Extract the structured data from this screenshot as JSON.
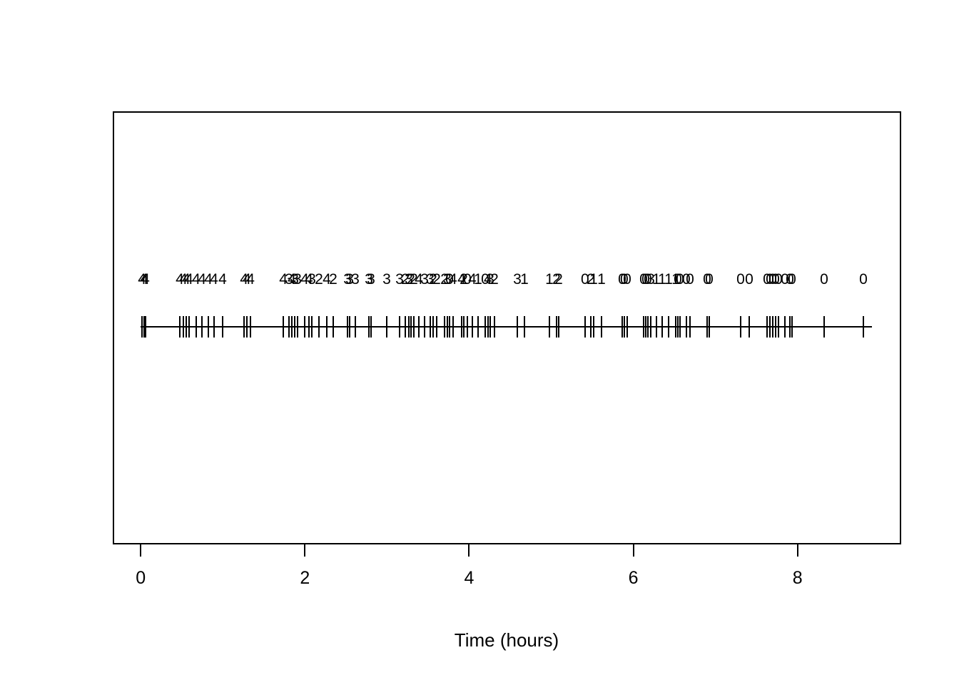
{
  "figure": {
    "background_color": "#ffffff",
    "frame_color": "#000000",
    "text_color": "#000000"
  },
  "chart_data": {
    "type": "scatter",
    "subtype": "event-rug-timeline",
    "title": "",
    "xlabel": "Time (hours)",
    "ylabel": "",
    "xlim": [
      -0.34,
      9.26
    ],
    "x_ticks": [
      0,
      2,
      4,
      6,
      8
    ],
    "x_tick_labels": [
      "0",
      "2",
      "4",
      "6",
      "8"
    ],
    "grid": false,
    "legend": false,
    "timeline": {
      "t_start": 0.0,
      "t_end": 8.91
    },
    "events": [
      {
        "t": 0.016,
        "label": "4"
      },
      {
        "t": 0.042,
        "label": "4"
      },
      {
        "t": 0.059,
        "label": "4"
      },
      {
        "t": 0.476,
        "label": "4"
      },
      {
        "t": 0.52,
        "label": "4"
      },
      {
        "t": 0.554,
        "label": "4"
      },
      {
        "t": 0.589,
        "label": "4"
      },
      {
        "t": 0.676,
        "label": "4"
      },
      {
        "t": 0.746,
        "label": "4"
      },
      {
        "t": 0.824,
        "label": "4"
      },
      {
        "t": 0.893,
        "label": "4"
      },
      {
        "t": 0.998,
        "label": "4"
      },
      {
        "t": 1.259,
        "label": "4"
      },
      {
        "t": 1.293,
        "label": "4"
      },
      {
        "t": 1.337,
        "label": "4"
      },
      {
        "t": 1.737,
        "label": "4"
      },
      {
        "t": 1.806,
        "label": "3"
      },
      {
        "t": 1.841,
        "label": "4"
      },
      {
        "t": 1.875,
        "label": "3"
      },
      {
        "t": 1.91,
        "label": "3"
      },
      {
        "t": 1.997,
        "label": "4"
      },
      {
        "t": 2.049,
        "label": "4"
      },
      {
        "t": 2.084,
        "label": "3"
      },
      {
        "t": 2.171,
        "label": "2"
      },
      {
        "t": 2.266,
        "label": "4"
      },
      {
        "t": 2.345,
        "label": "2"
      },
      {
        "t": 2.519,
        "label": "3"
      },
      {
        "t": 2.545,
        "label": "3"
      },
      {
        "t": 2.614,
        "label": "3"
      },
      {
        "t": 2.779,
        "label": "3"
      },
      {
        "t": 2.805,
        "label": "3"
      },
      {
        "t": 2.996,
        "label": "3"
      },
      {
        "t": 3.153,
        "label": "3"
      },
      {
        "t": 3.222,
        "label": "2"
      },
      {
        "t": 3.266,
        "label": "3"
      },
      {
        "t": 3.292,
        "label": "2"
      },
      {
        "t": 3.327,
        "label": "2"
      },
      {
        "t": 3.387,
        "label": "4"
      },
      {
        "t": 3.457,
        "label": "3"
      },
      {
        "t": 3.526,
        "label": "3"
      },
      {
        "t": 3.561,
        "label": "2"
      },
      {
        "t": 3.605,
        "label": "2"
      },
      {
        "t": 3.7,
        "label": "2"
      },
      {
        "t": 3.735,
        "label": "3"
      },
      {
        "t": 3.761,
        "label": "0"
      },
      {
        "t": 3.804,
        "label": "4"
      },
      {
        "t": 3.909,
        "label": "4"
      },
      {
        "t": 3.935,
        "label": "2"
      },
      {
        "t": 3.978,
        "label": "0"
      },
      {
        "t": 4.039,
        "label": "4"
      },
      {
        "t": 4.109,
        "label": "1"
      },
      {
        "t": 4.196,
        "label": "0"
      },
      {
        "t": 4.23,
        "label": "4"
      },
      {
        "t": 4.257,
        "label": "3"
      },
      {
        "t": 4.309,
        "label": "2"
      },
      {
        "t": 4.587,
        "label": "3"
      },
      {
        "t": 4.674,
        "label": "1"
      },
      {
        "t": 4.978,
        "label": "1"
      },
      {
        "t": 5.065,
        "label": "2"
      },
      {
        "t": 5.091,
        "label": "2"
      },
      {
        "t": 5.412,
        "label": "0"
      },
      {
        "t": 5.482,
        "label": "2"
      },
      {
        "t": 5.517,
        "label": "1"
      },
      {
        "t": 5.612,
        "label": "1"
      },
      {
        "t": 5.864,
        "label": "0"
      },
      {
        "t": 5.89,
        "label": "0"
      },
      {
        "t": 5.925,
        "label": "0"
      },
      {
        "t": 6.125,
        "label": "0"
      },
      {
        "t": 6.151,
        "label": "0"
      },
      {
        "t": 6.177,
        "label": "0"
      },
      {
        "t": 6.212,
        "label": "3"
      },
      {
        "t": 6.281,
        "label": "1"
      },
      {
        "t": 6.351,
        "label": "1"
      },
      {
        "t": 6.429,
        "label": "1"
      },
      {
        "t": 6.516,
        "label": "1"
      },
      {
        "t": 6.542,
        "label": "0"
      },
      {
        "t": 6.568,
        "label": "0"
      },
      {
        "t": 6.646,
        "label": "0"
      },
      {
        "t": 6.69,
        "label": "0"
      },
      {
        "t": 6.899,
        "label": "0"
      },
      {
        "t": 6.925,
        "label": "0"
      },
      {
        "t": 7.307,
        "label": "0"
      },
      {
        "t": 7.411,
        "label": "0"
      },
      {
        "t": 7.629,
        "label": "0"
      },
      {
        "t": 7.664,
        "label": "0"
      },
      {
        "t": 7.698,
        "label": "0"
      },
      {
        "t": 7.733,
        "label": "0"
      },
      {
        "t": 7.768,
        "label": "0"
      },
      {
        "t": 7.846,
        "label": "0"
      },
      {
        "t": 7.907,
        "label": "0"
      },
      {
        "t": 7.933,
        "label": "0"
      },
      {
        "t": 8.324,
        "label": "0"
      },
      {
        "t": 8.802,
        "label": "0"
      }
    ]
  }
}
